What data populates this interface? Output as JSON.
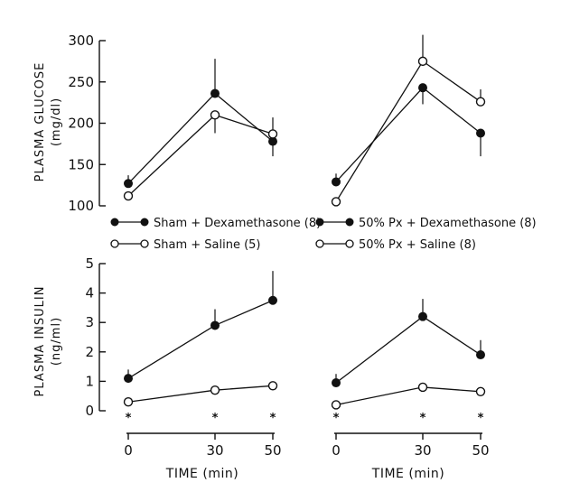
{
  "legend": [
    {
      "label": "Sham + Dexamethasone (8)",
      "marker": "filled"
    },
    {
      "label": "50% Px + Dexamethasone (8)",
      "marker": "filled"
    },
    {
      "label": "Sham + Saline (5)",
      "marker": "open"
    },
    {
      "label": "50% Px + Saline (8)",
      "marker": "open"
    }
  ],
  "xlabel": "TIME (min)",
  "chart_data": [
    {
      "type": "line",
      "panel": "glucose-sham",
      "ylabel_main": "PLASMA GLUCOSE",
      "ylabel_unit": "(mg/dl)",
      "ylim": [
        100,
        300
      ],
      "yticks": [
        100,
        150,
        200,
        250,
        300
      ],
      "x": [
        0,
        30,
        50
      ],
      "series": [
        {
          "name": "Sham + Dexamethasone (8)",
          "marker": "filled",
          "values": [
            127,
            236,
            178
          ],
          "error_up": [
            10,
            42,
            0
          ],
          "error_down": [
            0,
            0,
            18
          ]
        },
        {
          "name": "Sham + Saline (5)",
          "marker": "open",
          "values": [
            112,
            210,
            187
          ],
          "error_up": [
            0,
            0,
            20
          ],
          "error_down": [
            0,
            22,
            0
          ]
        }
      ]
    },
    {
      "type": "line",
      "panel": "glucose-px",
      "ylim": [
        100,
        300
      ],
      "x": [
        0,
        30,
        50
      ],
      "series": [
        {
          "name": "50% Px + Dexamethasone (8)",
          "marker": "filled",
          "values": [
            129,
            243,
            188
          ],
          "error_up": [
            10,
            0,
            0
          ],
          "error_down": [
            0,
            20,
            28
          ]
        },
        {
          "name": "50% Px + Saline (8)",
          "marker": "open",
          "values": [
            105,
            275,
            226
          ],
          "error_up": [
            0,
            32,
            15
          ],
          "error_down": [
            0,
            0,
            0
          ]
        }
      ]
    },
    {
      "type": "line",
      "panel": "insulin-sham",
      "ylabel_main": "PLASMA INSULIN",
      "ylabel_unit": "(ng/ml)",
      "ylim": [
        0,
        5
      ],
      "yticks": [
        0,
        1,
        2,
        3,
        4,
        5
      ],
      "xticks": [
        0,
        30,
        50
      ],
      "x": [
        0,
        30,
        50
      ],
      "significance_marks": [
        "*",
        "*",
        "*"
      ],
      "series": [
        {
          "name": "Sham + Dexamethasone (8)",
          "marker": "filled",
          "values": [
            1.1,
            2.9,
            3.75
          ],
          "error_up": [
            0.3,
            0.55,
            1.0
          ],
          "error_down": [
            0,
            0,
            0
          ]
        },
        {
          "name": "Sham + Saline (5)",
          "marker": "open",
          "values": [
            0.3,
            0.7,
            0.85
          ],
          "error_up": [
            0,
            0,
            0
          ],
          "error_down": [
            0,
            0,
            0
          ]
        }
      ]
    },
    {
      "type": "line",
      "panel": "insulin-px",
      "ylim": [
        0,
        5
      ],
      "xticks": [
        0,
        30,
        50
      ],
      "x": [
        0,
        30,
        50
      ],
      "significance_marks": [
        "*",
        "*",
        "*"
      ],
      "series": [
        {
          "name": "50% Px + Dexamethasone (8)",
          "marker": "filled",
          "values": [
            0.95,
            3.2,
            1.9
          ],
          "error_up": [
            0.3,
            0.6,
            0.5
          ],
          "error_down": [
            0,
            0,
            0
          ]
        },
        {
          "name": "50% Px + Saline (8)",
          "marker": "open",
          "values": [
            0.2,
            0.8,
            0.65
          ],
          "error_up": [
            0,
            0,
            0
          ],
          "error_down": [
            0,
            0,
            0
          ]
        }
      ]
    }
  ]
}
